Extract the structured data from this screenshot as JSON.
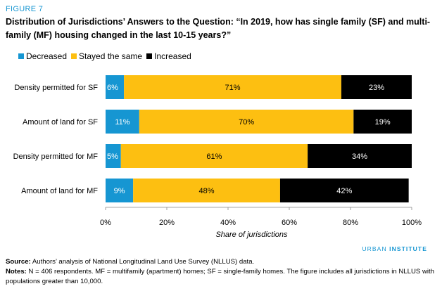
{
  "figure_label": "FIGURE 7",
  "title": "Distribution of Jurisdictions’ Answers to the Question: “In 2019, how has single family (SF) and multi-family (MF) housing changed in the last 10-15 years?”",
  "brand": {
    "part1": "URBAN",
    "part2": "INSTITUTE"
  },
  "source": {
    "label": "Source:",
    "text": " Authors’ analysis of National Longitudinal Land Use Survey (NLLUS) data."
  },
  "notes": {
    "label": "Notes:",
    "text": " N = 406 respondents. MF = multifamily (apartment) homes; SF = single-family homes. The figure includes all jurisdictions in NLLUS with populations greater than 10,000."
  },
  "chart_data": {
    "type": "bar",
    "orientation": "horizontal",
    "stacked": true,
    "categories": [
      "Density permitted for SF",
      "Amount of land for SF",
      "Density permitted for MF",
      "Amount of land for MF"
    ],
    "series": [
      {
        "name": "Decreased",
        "color": "#1696d2",
        "label_color": "#ffffff",
        "values": [
          6,
          11,
          5,
          9
        ],
        "labels": [
          "6%",
          "11%",
          "5%",
          "9%"
        ]
      },
      {
        "name": "Stayed the same",
        "color": "#fdbf11",
        "label_color": "#000000",
        "values": [
          71,
          70,
          61,
          48
        ],
        "labels": [
          "71%",
          "70%",
          "61%",
          "48%"
        ]
      },
      {
        "name": "Increased",
        "color": "#000000",
        "label_color": "#ffffff",
        "values": [
          23,
          19,
          34,
          42
        ],
        "labels": [
          "23%",
          "19%",
          "34%",
          "42%"
        ]
      }
    ],
    "xlim": [
      0,
      100
    ],
    "xticks": [
      0,
      20,
      40,
      60,
      80,
      100
    ],
    "xtick_labels": [
      "0%",
      "20%",
      "40%",
      "60%",
      "80%",
      "100%"
    ],
    "xlabel": "Share of jurisdictions",
    "ylabel": "",
    "legend_position": "top-left",
    "grid": false
  }
}
